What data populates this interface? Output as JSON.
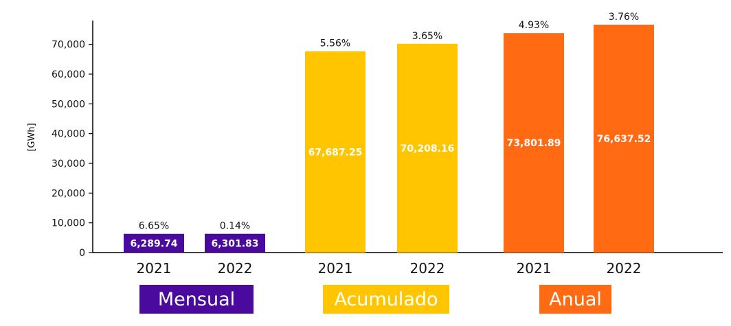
{
  "chart_data": {
    "type": "bar",
    "ylabel": "[GWh]",
    "ylim": [
      0,
      78000
    ],
    "yticks": [
      0,
      10000,
      20000,
      30000,
      40000,
      50000,
      60000,
      70000
    ],
    "ytick_labels": [
      "0",
      "10,000",
      "20,000",
      "30,000",
      "40,000",
      "50,000",
      "60,000",
      "70,000"
    ],
    "grid": false,
    "groups": [
      {
        "name": "Mensual",
        "color": "#4a0a9e",
        "bars": [
          {
            "category": "2021",
            "value": 6289.74,
            "value_label": "6,289.74",
            "pct_label": "6.65%"
          },
          {
            "category": "2022",
            "value": 6301.83,
            "value_label": "6,301.83",
            "pct_label": "0.14%"
          }
        ]
      },
      {
        "name": "Acumulado",
        "color": "#ffc500",
        "bars": [
          {
            "category": "2021",
            "value": 67687.25,
            "value_label": "67,687.25",
            "pct_label": "5.56%"
          },
          {
            "category": "2022",
            "value": 70208.16,
            "value_label": "70,208.16",
            "pct_label": "3.65%"
          }
        ]
      },
      {
        "name": "Anual",
        "color": "#ff6a12",
        "bars": [
          {
            "category": "2021",
            "value": 73801.89,
            "value_label": "73,801.89",
            "pct_label": "4.93%"
          },
          {
            "category": "2022",
            "value": 76637.52,
            "value_label": "76,637.52",
            "pct_label": "3.76%"
          }
        ]
      }
    ]
  }
}
